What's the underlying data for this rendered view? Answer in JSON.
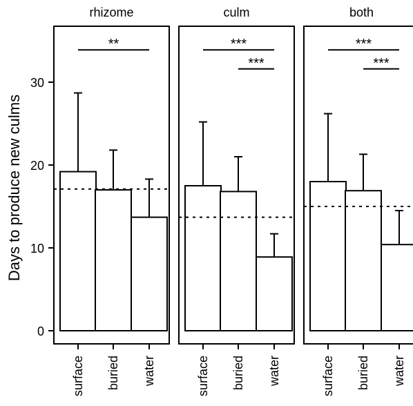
{
  "chart_data": {
    "type": "bar",
    "ylabel": "Days to produce new culms",
    "ylim": [
      0,
      36
    ],
    "yticks": [
      0,
      10,
      20,
      30
    ],
    "categories": [
      "surface",
      "buried",
      "water"
    ],
    "grid": false,
    "legend": "none",
    "panels": [
      {
        "title": "rhizome",
        "values": [
          19.2,
          17.0,
          13.7
        ],
        "errors": [
          9.5,
          4.8,
          4.6
        ],
        "reference": 17.1,
        "annotations": [
          {
            "label": "**",
            "from": "surface",
            "to": "water",
            "level": 33.9
          }
        ]
      },
      {
        "title": "culm",
        "values": [
          17.5,
          16.8,
          8.9
        ],
        "errors": [
          7.7,
          4.2,
          2.8
        ],
        "reference": 13.7,
        "annotations": [
          {
            "label": "***",
            "from": "surface",
            "to": "water",
            "level": 33.9
          },
          {
            "label": "***",
            "from": "buried",
            "to": "water",
            "level": 31.6
          }
        ]
      },
      {
        "title": "both",
        "values": [
          18.0,
          16.9,
          10.4
        ],
        "errors": [
          8.2,
          4.4,
          4.1
        ],
        "reference": 15.0,
        "annotations": [
          {
            "label": "***",
            "from": "surface",
            "to": "water",
            "level": 33.9
          },
          {
            "label": "***",
            "from": "buried",
            "to": "water",
            "level": 31.6
          }
        ]
      }
    ],
    "colors": {
      "bar_fill": "#ffffff",
      "stroke": "#000000",
      "background": "#ffffff"
    }
  }
}
